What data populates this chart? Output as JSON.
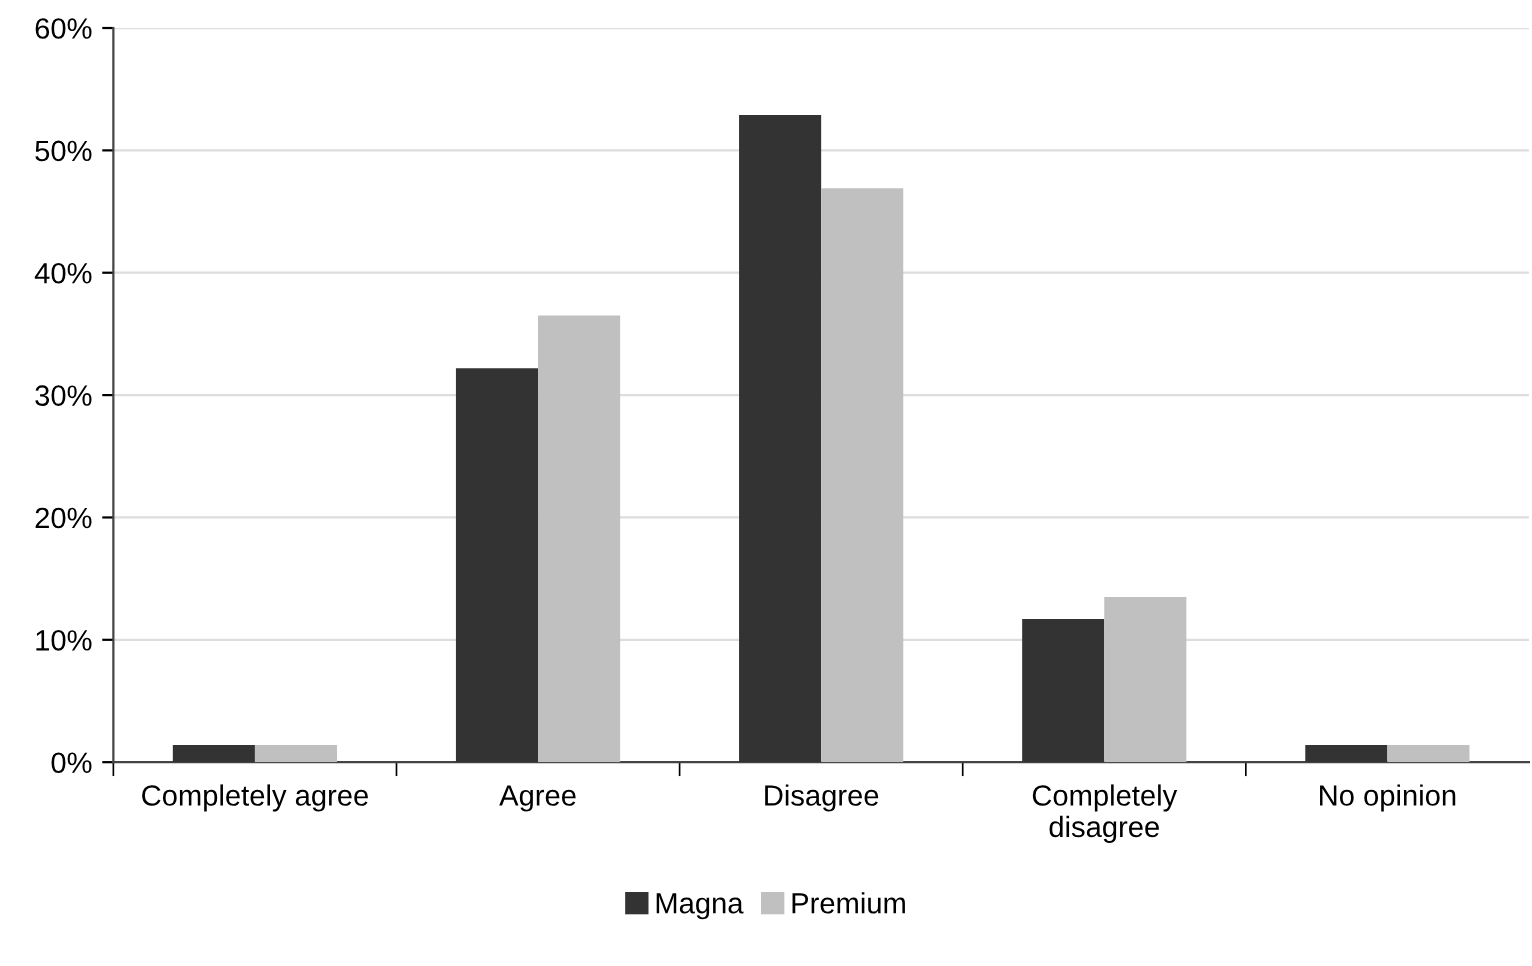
{
  "chart_data": {
    "type": "bar",
    "categories": [
      "Completely agree",
      "Agree",
      "Disagree",
      "Completely\ndisagree",
      "No opinion"
    ],
    "series": [
      {
        "name": "Magna",
        "color": "#333333",
        "values": [
          1.4,
          32.2,
          52.9,
          11.7,
          1.4
        ]
      },
      {
        "name": "Premium",
        "color": "#c0c0c0",
        "values": [
          1.4,
          36.5,
          46.9,
          13.5,
          1.4
        ]
      }
    ],
    "ylim": [
      0,
      60
    ],
    "yticks": [
      {
        "value": 0,
        "label": "0%"
      },
      {
        "value": 10,
        "label": "10%"
      },
      {
        "value": 20,
        "label": "20%"
      },
      {
        "value": 30,
        "label": "30%"
      },
      {
        "value": 40,
        "label": "40%"
      },
      {
        "value": 50,
        "label": "50%"
      },
      {
        "value": 60,
        "label": "60%"
      }
    ],
    "grid": "y",
    "legend": "bottom"
  }
}
